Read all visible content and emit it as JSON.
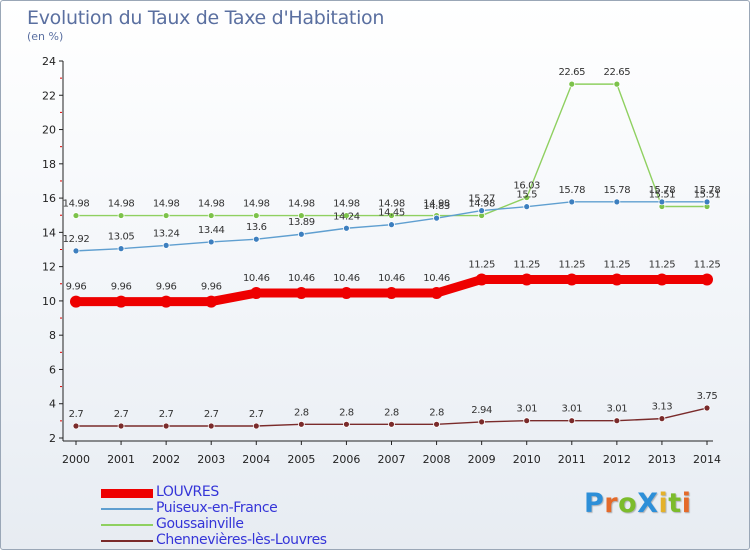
{
  "title": "Evolution du Taux de Taxe d'Habitation",
  "subtitle": "(en %)",
  "brand": {
    "text": "ProXiti",
    "colors": [
      "#2d8fd8",
      "#e46a2a",
      "#7cbc2c",
      "#2d8fd8",
      "#e4b12a",
      "#7cbc2c",
      "#e46a2a"
    ]
  },
  "chart_data": {
    "type": "line",
    "x": [
      2000,
      2001,
      2002,
      2003,
      2004,
      2005,
      2006,
      2007,
      2008,
      2009,
      2010,
      2011,
      2012,
      2013,
      2014
    ],
    "ylim": [
      2,
      24
    ],
    "yticks": [
      2,
      4,
      6,
      8,
      10,
      12,
      14,
      16,
      18,
      20,
      22,
      24
    ],
    "grid": false,
    "legend_placement": "bottom-left",
    "series": [
      {
        "name": "Goussainville",
        "color": "#8fd060",
        "marker": "#7cc24a",
        "width": 1.4,
        "values": [
          14.98,
          14.98,
          14.98,
          14.98,
          14.98,
          14.98,
          14.98,
          14.98,
          14.98,
          14.98,
          16.03,
          22.65,
          22.65,
          15.51,
          15.51
        ],
        "labels": [
          "14.98",
          "14.98",
          "14.98",
          "14.98",
          "14.98",
          "14.98",
          "14.98",
          "14.98",
          "14.98",
          "14.98",
          "16.03",
          "22.65",
          "22.65",
          "15.51",
          "15.51"
        ]
      },
      {
        "name": "Puiseux-en-France",
        "color": "#5f9fd0",
        "marker": "#3d7fbf",
        "width": 1.4,
        "values": [
          12.92,
          13.05,
          13.24,
          13.44,
          13.6,
          13.89,
          14.24,
          14.45,
          14.83,
          15.27,
          15.5,
          15.78,
          15.78,
          15.78,
          15.78
        ],
        "labels": [
          "12.92",
          "13.05",
          "13.24",
          "13.44",
          "13.6",
          "13.89",
          "14.24",
          "14.45",
          "14.83",
          "15.27",
          "15.5",
          "15.78",
          "15.78",
          "15.78",
          "15.78"
        ]
      },
      {
        "name": "LOUVRES",
        "color": "#ee0000",
        "marker": "#ee0000",
        "width": 9,
        "values": [
          9.96,
          9.96,
          9.96,
          9.96,
          10.46,
          10.46,
          10.46,
          10.46,
          10.46,
          11.25,
          11.25,
          11.25,
          11.25,
          11.25,
          11.25
        ],
        "labels": [
          "9.96",
          "9.96",
          "9.96",
          "9.96",
          "10.46",
          "10.46",
          "10.46",
          "10.46",
          "10.46",
          "11.25",
          "11.25",
          "11.25",
          "11.25",
          "11.25",
          "11.25"
        ]
      },
      {
        "name": "Chennevières-lès-Louvres",
        "color": "#7a2b2b",
        "marker": "#7a2b2b",
        "width": 1.4,
        "values": [
          2.7,
          2.7,
          2.7,
          2.7,
          2.7,
          2.8,
          2.8,
          2.8,
          2.8,
          2.94,
          3.01,
          3.01,
          3.01,
          3.13,
          3.75
        ],
        "labels": [
          "2.7",
          "2.7",
          "2.7",
          "2.7",
          "2.7",
          "2.8",
          "2.8",
          "2.8",
          "2.8",
          "2.94",
          "3.01",
          "3.01",
          "3.01",
          "3.13",
          "3.75"
        ]
      }
    ],
    "legend_order": [
      "LOUVRES",
      "Puiseux-en-France",
      "Goussainville",
      "Chennevières-lès-Louvres"
    ]
  }
}
